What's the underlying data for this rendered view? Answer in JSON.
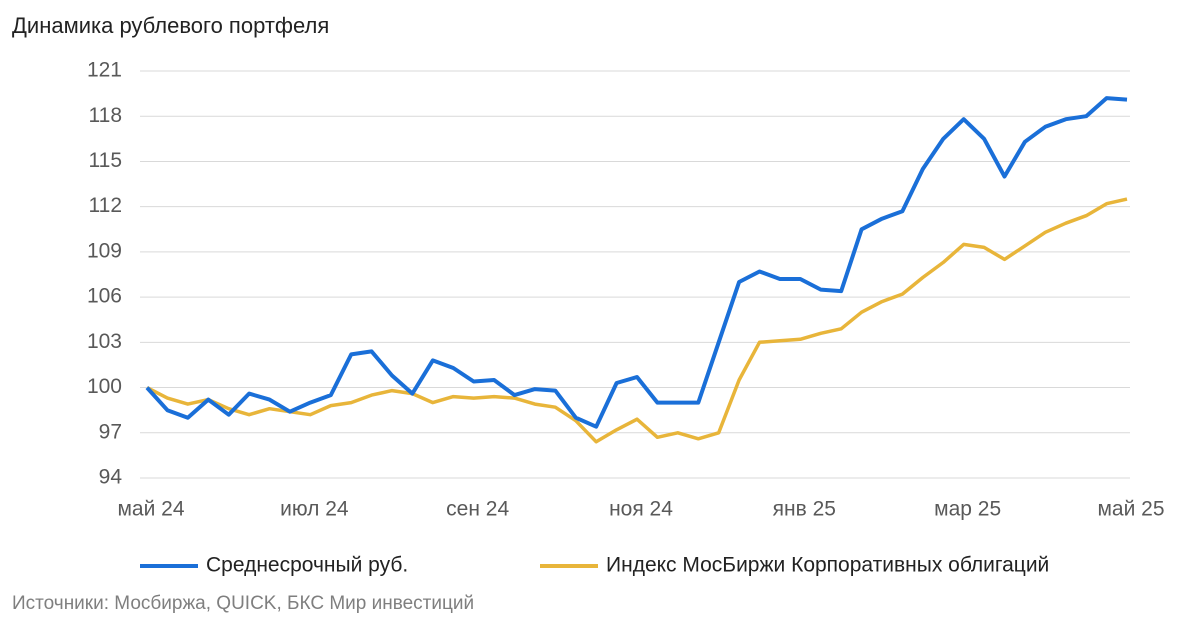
{
  "chart_data": {
    "type": "line",
    "title": "Динамика рублевого портфеля",
    "source": "Источники: Мосбиржа, QUICK, БКС Мир инвестиций",
    "categories": [
      "май 24",
      null,
      null,
      null,
      null,
      null,
      null,
      null,
      "июл 24",
      null,
      null,
      null,
      null,
      null,
      null,
      null,
      "сен 24",
      null,
      null,
      null,
      null,
      null,
      null,
      null,
      "ноя 24",
      null,
      null,
      null,
      null,
      null,
      null,
      null,
      "янв 25",
      null,
      null,
      null,
      null,
      null,
      null,
      null,
      "мар 25",
      null,
      null,
      null,
      null,
      null,
      null,
      null,
      "май 25"
    ],
    "series": [
      {
        "name": "Среднесрочный руб.",
        "color": "#1a6fd8",
        "values": [
          100,
          98.5,
          98.0,
          99.2,
          98.2,
          99.6,
          99.2,
          98.4,
          99.0,
          99.5,
          102.2,
          102.4,
          100.8,
          99.6,
          101.8,
          101.3,
          100.4,
          100.5,
          99.5,
          99.9,
          99.8,
          98.0,
          97.4,
          100.3,
          100.7,
          99.0,
          99.0,
          99.0,
          103.0,
          107.0,
          107.7,
          107.2,
          107.2,
          106.5,
          106.4,
          110.5,
          111.2,
          111.7,
          114.5,
          116.5,
          117.8,
          116.5,
          114.0,
          116.3,
          117.3,
          117.8,
          118.0,
          119.2,
          119.1
        ]
      },
      {
        "name": "Индекс МосБиржи Корпоративных облигаций",
        "color": "#e8b53a",
        "values": [
          100,
          99.3,
          98.9,
          99.2,
          98.6,
          98.2,
          98.6,
          98.4,
          98.2,
          98.8,
          99.0,
          99.5,
          99.8,
          99.6,
          99.0,
          99.4,
          99.3,
          99.4,
          99.3,
          98.9,
          98.7,
          97.8,
          96.4,
          97.2,
          97.9,
          96.7,
          97.0,
          96.6,
          97.0,
          100.5,
          103.0,
          103.1,
          103.2,
          103.6,
          103.9,
          105.0,
          105.7,
          106.2,
          107.3,
          108.3,
          109.5,
          109.3,
          108.5,
          109.4,
          110.3,
          110.9,
          111.4,
          112.2,
          112.5
        ]
      }
    ],
    "ylim": [
      94,
      121
    ],
    "yticks": [
      94,
      97,
      100,
      103,
      106,
      109,
      112,
      115,
      118,
      121
    ],
    "grid": true
  }
}
